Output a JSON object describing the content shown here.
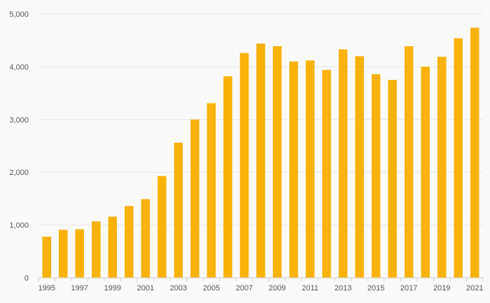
{
  "chart_data": {
    "type": "bar",
    "title": "",
    "xlabel": "",
    "ylabel": "",
    "categories": [
      "1995",
      "1996",
      "1997",
      "1998",
      "1999",
      "2000",
      "2001",
      "2002",
      "2003",
      "2004",
      "2005",
      "2006",
      "2007",
      "2008",
      "2009",
      "2010",
      "2011",
      "2012",
      "2013",
      "2014",
      "2015",
      "2016",
      "2017",
      "2018",
      "2019",
      "2020",
      "2021"
    ],
    "values": [
      780,
      910,
      920,
      1070,
      1160,
      1360,
      1490,
      1930,
      2560,
      3000,
      3310,
      3820,
      4260,
      4440,
      4390,
      4100,
      4120,
      3940,
      4330,
      4200,
      3860,
      3750,
      4390,
      4000,
      4190,
      4540,
      4740
    ],
    "x_tick_labels": [
      "1995",
      "1997",
      "1999",
      "2001",
      "2003",
      "2005",
      "2007",
      "2009",
      "2011",
      "2013",
      "2015",
      "2017",
      "2019",
      "2021"
    ],
    "y_ticks": [
      0,
      1000,
      2000,
      3000,
      4000,
      5000
    ],
    "y_tick_labels": [
      "0",
      "1,000",
      "2,000",
      "3,000",
      "4,000",
      "5,000"
    ],
    "ylim": [
      0,
      5000
    ],
    "grid": true,
    "legend": "none",
    "colors": {
      "bar": "#F9B208",
      "grid": "#e6e6e6",
      "axis": "#cccccc",
      "background": "#fafafa"
    }
  }
}
